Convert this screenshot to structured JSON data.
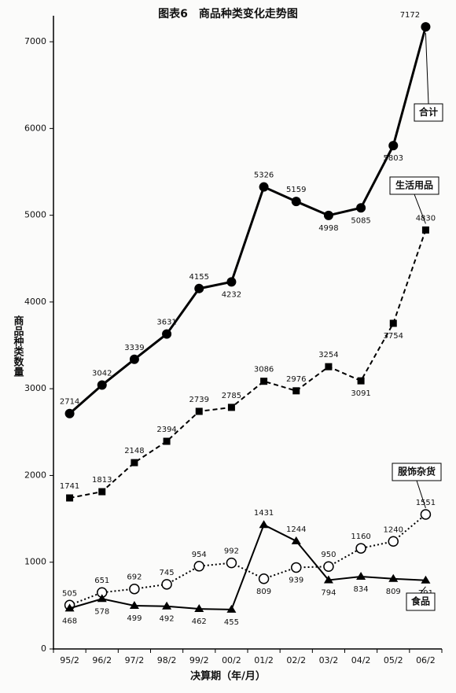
{
  "chart_data": {
    "type": "line",
    "title": "图表6　商品种类变化走势图",
    "y_label": "商品种类数量",
    "x_label": "决算期（年/月）",
    "categories": [
      "95/2",
      "96/2",
      "97/2",
      "98/2",
      "99/2",
      "00/2",
      "01/2",
      "02/2",
      "03/2",
      "04/2",
      "05/2",
      "06/2"
    ],
    "series": [
      {
        "name": "合计",
        "color": "#000000",
        "marker": "circle",
        "line_style": "solid",
        "values": [
          2714,
          3042,
          3339,
          3631,
          4155,
          4232,
          5326,
          5159,
          4998,
          5085,
          5803,
          7172
        ]
      },
      {
        "name": "生活用品",
        "color": "#000000",
        "marker": "square",
        "line_style": "dashed",
        "values": [
          1741,
          1813,
          2148,
          2394,
          2739,
          2785,
          3086,
          2976,
          3254,
          3091,
          3754,
          4830
        ]
      },
      {
        "name": "服饰杂货",
        "color": "#000000",
        "marker": "open-circle",
        "line_style": "dotted",
        "values": [
          505,
          651,
          692,
          745,
          954,
          992,
          809,
          939,
          950,
          1160,
          1240,
          1551
        ]
      },
      {
        "name": "食品",
        "color": "#000000",
        "marker": "triangle",
        "line_style": "solid",
        "values": [
          468,
          578,
          499,
          492,
          462,
          455,
          1431,
          1244,
          794,
          834,
          809,
          791
        ]
      }
    ],
    "ylim": [
      0,
      7300
    ],
    "yticks": [
      0,
      1000,
      2000,
      3000,
      4000,
      5000,
      6000,
      7000
    ],
    "grid": false
  }
}
